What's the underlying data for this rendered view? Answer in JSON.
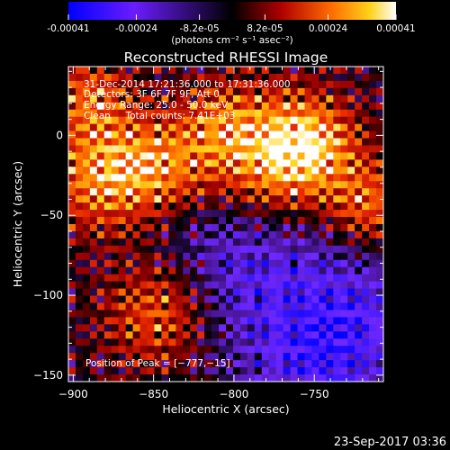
{
  "colorbar": {
    "ticks": [
      "-0.00041",
      "-0.00024",
      "-8.2e-05",
      "8.2e-05",
      "0.00024",
      "0.00041"
    ],
    "unit_label": "(photons cm⁻² s⁻¹ asec⁻²)",
    "min": -0.00041,
    "max": 0.00041
  },
  "chart_data": {
    "type": "heatmap",
    "title": "Reconstructed RHESSI Image",
    "xlabel": "Heliocentric X (arcsec)",
    "ylabel": "Heliocentric Y (arcsec)",
    "xlim": [
      -903,
      -707
    ],
    "ylim": [
      -154,
      43
    ],
    "x_ticks": [
      -900,
      -850,
      -800,
      -750
    ],
    "y_ticks": [
      0,
      -50,
      -100,
      -150
    ],
    "x_tick_labels": [
      "−900",
      "−850",
      "−800",
      "−750"
    ],
    "y_tick_labels": [
      "0",
      "−50",
      "−100",
      "−150"
    ],
    "colormap": "blue-purple-black-red-yellow-white",
    "annotations": [
      "31-Dec-2014 17:21:36.000 to 17:31:36.000",
      "Detectors: 3F 6F 7F 9F, Att 0",
      "Energy Range: 25.0 - 50.0 keV",
      "Clean     Total counts: 7.41E+03"
    ],
    "peak_label": "Position of Peak = [−777,−15]",
    "peak_position": [
      -777,
      -15
    ],
    "grid": false
  },
  "footer": {
    "timestamp": "23-Sep-2017 03:36"
  }
}
